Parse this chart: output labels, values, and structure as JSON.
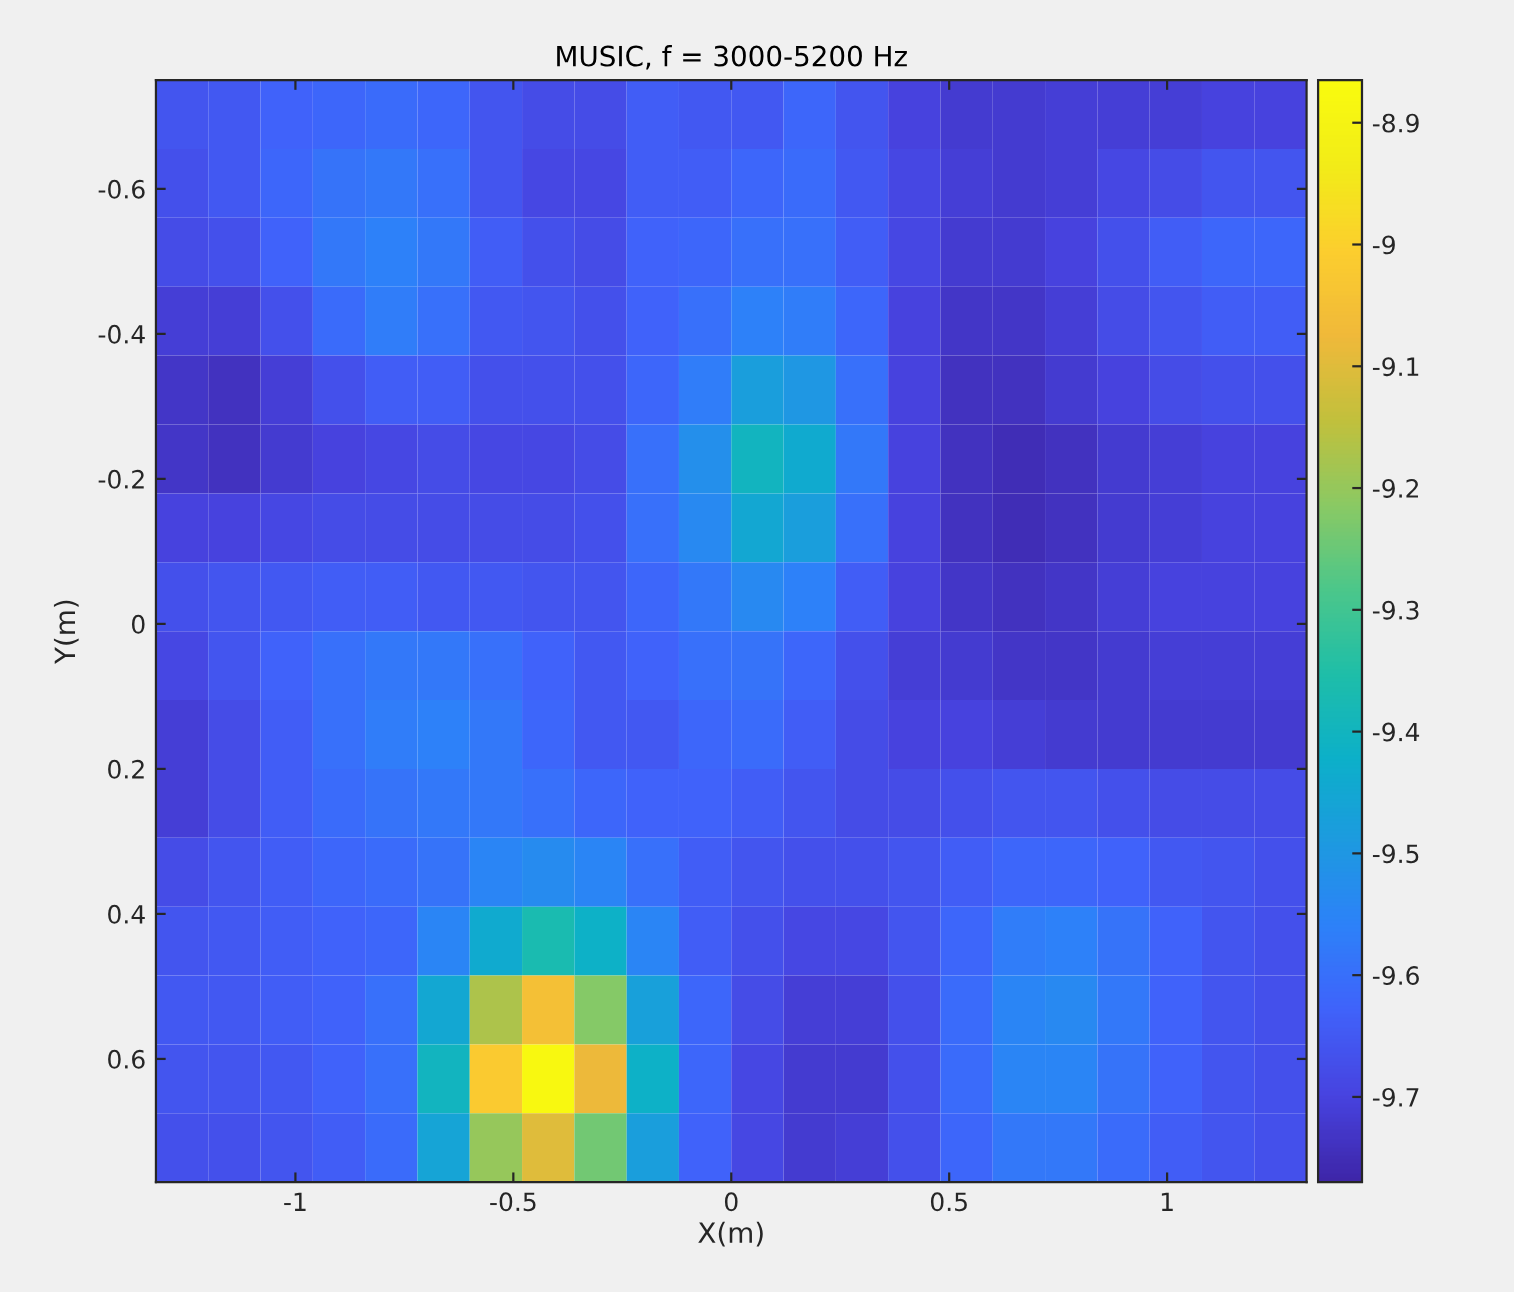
{
  "chart_data": {
    "type": "heatmap",
    "title": "MUSIC, f = 3000-5200 Hz",
    "xlabel": "X(m)",
    "ylabel": "Y(m)",
    "xlim": [
      -1.32,
      1.32
    ],
    "xticks": [
      {
        "value": -1,
        "label": "-1"
      },
      {
        "value": -0.5,
        "label": "-0.5"
      },
      {
        "value": 0,
        "label": "0"
      },
      {
        "value": 0.5,
        "label": "0.5"
      },
      {
        "value": 1,
        "label": "1"
      }
    ],
    "ylim": [
      0.77,
      -0.75
    ],
    "yticks": [
      {
        "value": -0.6,
        "label": "-0.6"
      },
      {
        "value": -0.4,
        "label": "-0.4"
      },
      {
        "value": -0.2,
        "label": "-0.2"
      },
      {
        "value": 0,
        "label": "0"
      },
      {
        "value": 0.2,
        "label": "0.2"
      },
      {
        "value": 0.4,
        "label": "0.4"
      },
      {
        "value": 0.6,
        "label": "0.6"
      }
    ],
    "clim": [
      -9.77,
      -8.865
    ],
    "cticks": [
      {
        "value": -8.9,
        "label": "-8.9"
      },
      {
        "value": -9,
        "label": "-9"
      },
      {
        "value": -9.1,
        "label": "-9.1"
      },
      {
        "value": -9.2,
        "label": "-9.2"
      },
      {
        "value": -9.3,
        "label": "-9.3"
      },
      {
        "value": -9.4,
        "label": "-9.4"
      },
      {
        "value": -9.5,
        "label": "-9.5"
      },
      {
        "value": -9.6,
        "label": "-9.6"
      },
      {
        "value": -9.7,
        "label": "-9.7"
      }
    ],
    "grid": false,
    "cells": [
      [
        -9.66,
        -9.65,
        -9.63,
        -9.62,
        -9.61,
        -9.62,
        -9.66,
        -9.68,
        -9.68,
        -9.64,
        -9.65,
        -9.65,
        -9.62,
        -9.66,
        -9.7,
        -9.72,
        -9.72,
        -9.71,
        -9.71,
        -9.71,
        -9.7,
        -9.7
      ],
      [
        -9.67,
        -9.65,
        -9.62,
        -9.59,
        -9.58,
        -9.6,
        -9.66,
        -9.69,
        -9.69,
        -9.64,
        -9.64,
        -9.62,
        -9.61,
        -9.65,
        -9.69,
        -9.71,
        -9.72,
        -9.71,
        -9.69,
        -9.68,
        -9.66,
        -9.66
      ],
      [
        -9.68,
        -9.67,
        -9.63,
        -9.58,
        -9.56,
        -9.58,
        -9.64,
        -9.67,
        -9.68,
        -9.63,
        -9.62,
        -9.6,
        -9.6,
        -9.64,
        -9.69,
        -9.72,
        -9.72,
        -9.7,
        -9.67,
        -9.64,
        -9.62,
        -9.62
      ],
      [
        -9.71,
        -9.71,
        -9.67,
        -9.61,
        -9.57,
        -9.6,
        -9.65,
        -9.66,
        -9.67,
        -9.63,
        -9.6,
        -9.56,
        -9.57,
        -9.62,
        -9.7,
        -9.73,
        -9.73,
        -9.71,
        -9.68,
        -9.66,
        -9.64,
        -9.64
      ],
      [
        -9.73,
        -9.74,
        -9.71,
        -9.67,
        -9.64,
        -9.64,
        -9.67,
        -9.67,
        -9.67,
        -9.62,
        -9.57,
        -9.48,
        -9.5,
        -9.6,
        -9.7,
        -9.74,
        -9.74,
        -9.72,
        -9.7,
        -9.68,
        -9.67,
        -9.67
      ],
      [
        -9.73,
        -9.74,
        -9.72,
        -9.7,
        -9.69,
        -9.68,
        -9.69,
        -9.69,
        -9.68,
        -9.6,
        -9.52,
        -9.4,
        -9.44,
        -9.58,
        -9.7,
        -9.74,
        -9.75,
        -9.74,
        -9.72,
        -9.71,
        -9.7,
        -9.7
      ],
      [
        -9.7,
        -9.7,
        -9.69,
        -9.68,
        -9.68,
        -9.68,
        -9.68,
        -9.68,
        -9.67,
        -9.6,
        -9.54,
        -9.45,
        -9.48,
        -9.6,
        -9.7,
        -9.74,
        -9.75,
        -9.74,
        -9.72,
        -9.71,
        -9.7,
        -9.7
      ],
      [
        -9.67,
        -9.66,
        -9.65,
        -9.64,
        -9.64,
        -9.65,
        -9.65,
        -9.66,
        -9.66,
        -9.62,
        -9.58,
        -9.54,
        -9.56,
        -9.64,
        -9.7,
        -9.73,
        -9.74,
        -9.73,
        -9.71,
        -9.7,
        -9.7,
        -9.7
      ],
      [
        -9.69,
        -9.66,
        -9.63,
        -9.6,
        -9.58,
        -9.58,
        -9.6,
        -9.63,
        -9.65,
        -9.63,
        -9.6,
        -9.59,
        -9.62,
        -9.67,
        -9.71,
        -9.72,
        -9.73,
        -9.73,
        -9.72,
        -9.71,
        -9.71,
        -9.71
      ],
      [
        -9.71,
        -9.68,
        -9.64,
        -9.6,
        -9.57,
        -9.56,
        -9.58,
        -9.62,
        -9.65,
        -9.65,
        -9.62,
        -9.61,
        -9.64,
        -9.68,
        -9.7,
        -9.7,
        -9.71,
        -9.72,
        -9.72,
        -9.72,
        -9.72,
        -9.72
      ],
      [
        -9.71,
        -9.68,
        -9.64,
        -9.61,
        -9.59,
        -9.58,
        -9.58,
        -9.6,
        -9.62,
        -9.63,
        -9.63,
        -9.64,
        -9.66,
        -9.68,
        -9.68,
        -9.67,
        -9.66,
        -9.66,
        -9.67,
        -9.68,
        -9.68,
        -9.68
      ],
      [
        -9.68,
        -9.66,
        -9.64,
        -9.62,
        -9.61,
        -9.59,
        -9.55,
        -9.53,
        -9.55,
        -9.6,
        -9.64,
        -9.66,
        -9.67,
        -9.67,
        -9.66,
        -9.64,
        -9.62,
        -9.62,
        -9.63,
        -9.65,
        -9.66,
        -9.67
      ],
      [
        -9.66,
        -9.65,
        -9.64,
        -9.63,
        -9.62,
        -9.55,
        -9.44,
        -9.37,
        -9.42,
        -9.55,
        -9.64,
        -9.67,
        -9.69,
        -9.69,
        -9.66,
        -9.62,
        -9.57,
        -9.56,
        -9.59,
        -9.63,
        -9.66,
        -9.67
      ],
      [
        -9.65,
        -9.65,
        -9.64,
        -9.63,
        -9.6,
        -9.45,
        -9.17,
        -9.05,
        -9.22,
        -9.47,
        -9.62,
        -9.68,
        -9.71,
        -9.71,
        -9.67,
        -9.61,
        -9.55,
        -9.54,
        -9.58,
        -9.63,
        -9.66,
        -9.67
      ],
      [
        -9.66,
        -9.66,
        -9.65,
        -9.63,
        -9.6,
        -9.4,
        -9.02,
        -8.88,
        -9.08,
        -9.42,
        -9.62,
        -9.69,
        -9.72,
        -9.72,
        -9.67,
        -9.61,
        -9.55,
        -9.55,
        -9.59,
        -9.63,
        -9.66,
        -9.67
      ],
      [
        -9.67,
        -9.67,
        -9.66,
        -9.64,
        -9.61,
        -9.46,
        -9.2,
        -9.1,
        -9.24,
        -9.48,
        -9.63,
        -9.69,
        -9.72,
        -9.71,
        -9.67,
        -9.62,
        -9.58,
        -9.58,
        -9.61,
        -9.64,
        -9.66,
        -9.67
      ]
    ]
  }
}
